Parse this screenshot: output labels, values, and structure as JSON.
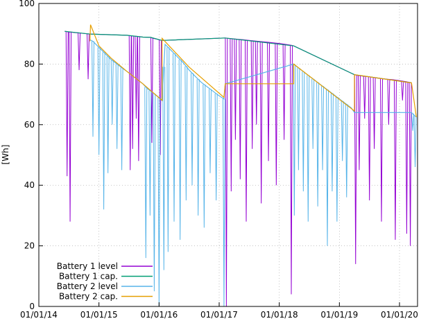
{
  "chart_data": {
    "type": "line",
    "title": "",
    "xlabel": "",
    "ylabel": "[Wh]",
    "ylim": [
      0,
      100
    ],
    "y_ticks": [
      0,
      20,
      40,
      60,
      80,
      100
    ],
    "x_ticks": [
      "01/01/14",
      "01/01/15",
      "01/01/16",
      "01/01/17",
      "01/01/18",
      "01/01/19",
      "01/01/20"
    ],
    "xlim": [
      2014.0,
      2020.3
    ],
    "grid": true,
    "legend_position": "bottom-left",
    "series": [
      {
        "name": "Battery 1 level",
        "color": "#9400d3",
        "x": [
          2014.43,
          2014.47,
          2014.5,
          2014.55,
          2014.6,
          2014.65,
          2014.7,
          2014.75,
          2014.8,
          2014.85,
          2015.47,
          2015.5,
          2015.55,
          2015.6,
          2015.65,
          2015.7,
          2015.73,
          2015.86,
          2015.9,
          2015.95,
          2016.0,
          2016.05,
          2017.1,
          2017.15,
          2017.2,
          2017.3,
          2017.4,
          2017.5,
          2017.6,
          2017.7,
          2017.8,
          2017.9,
          2018.0,
          2018.1,
          2018.2,
          2018.24,
          2019.25,
          2019.3,
          2019.4,
          2019.5,
          2019.6,
          2019.7,
          2019.8,
          2019.9,
          2020.0,
          2020.1,
          2020.15,
          2020.2
        ],
        "y": [
          90.8,
          90.7,
          90.6,
          90.5,
          90.4,
          90.3,
          90.2,
          90.1,
          90.0,
          89.9,
          89.5,
          89.4,
          89.3,
          89.2,
          89.1,
          89.0,
          88.9,
          88.8,
          88.5,
          88.3,
          88.0,
          87.8,
          88.6,
          88.5,
          88.4,
          88.2,
          88.0,
          87.8,
          87.6,
          87.4,
          87.2,
          87.0,
          86.8,
          86.5,
          86.2,
          86.0,
          76.5,
          76.3,
          76.0,
          75.8,
          75.5,
          75.2,
          75.0,
          74.8,
          74.5,
          74.2,
          74.0,
          73.8
        ],
        "dips_x": [
          2014.47,
          2014.52,
          2014.67,
          2014.82,
          2015.52,
          2015.56,
          2015.62,
          2015.66,
          2015.88,
          2016.02,
          2017.12,
          2017.2,
          2017.27,
          2017.35,
          2017.45,
          2017.55,
          2017.62,
          2017.7,
          2017.82,
          2017.95,
          2018.08,
          2018.2,
          2019.27,
          2019.33,
          2019.42,
          2019.5,
          2019.58,
          2019.7,
          2019.82,
          2019.93,
          2020.05,
          2020.12,
          2020.18
        ],
        "dips_y": [
          43,
          28,
          78,
          75,
          45,
          52,
          62,
          48,
          54,
          50,
          0,
          38,
          55,
          42,
          28,
          52,
          60,
          34,
          48,
          40,
          55,
          4,
          14,
          45,
          62,
          35,
          52,
          28,
          60,
          22,
          68,
          24,
          20
        ]
      },
      {
        "name": "Battery 1 cap.",
        "color": "#009e73",
        "x": [
          2014.43,
          2014.85,
          2015.47,
          2015.73,
          2015.86,
          2016.05,
          2017.1,
          2018.24,
          2019.25,
          2020.2
        ],
        "y": [
          90.8,
          89.9,
          89.5,
          88.9,
          88.8,
          87.8,
          88.6,
          86.0,
          76.5,
          73.8
        ]
      },
      {
        "name": "Battery 2 level",
        "color": "#56b4e9",
        "x": [
          2014.85,
          2014.9,
          2015.0,
          2015.1,
          2015.2,
          2015.3,
          2015.4,
          2015.47,
          2015.73,
          2015.8,
          2016.0,
          2016.05,
          2016.1,
          2016.2,
          2016.3,
          2016.4,
          2016.5,
          2016.6,
          2016.7,
          2016.8,
          2016.9,
          2017.0,
          2017.08,
          2017.1,
          2018.24,
          2018.3,
          2018.4,
          2018.5,
          2018.6,
          2018.7,
          2018.8,
          2018.9,
          2019.0,
          2019.1,
          2019.2,
          2019.25,
          2020.2,
          2020.25,
          2020.28
        ],
        "y": [
          88.0,
          87.5,
          85.5,
          83.5,
          81.5,
          80.0,
          78.5,
          77.5,
          73.5,
          72.0,
          69.0,
          68.0,
          86.5,
          84.5,
          82.5,
          80.5,
          78.0,
          76.0,
          74.0,
          72.5,
          71.0,
          69.5,
          68.5,
          73.5,
          80.0,
          79.0,
          77.5,
          76.0,
          74.5,
          73.0,
          71.5,
          70.0,
          68.5,
          67.0,
          65.5,
          64.0,
          64.0,
          63.0,
          62.5
        ],
        "dips_x": [
          2014.9,
          2015.0,
          2015.08,
          2015.15,
          2015.22,
          2015.3,
          2015.38,
          2015.78,
          2015.85,
          2015.92,
          2016.0,
          2016.08,
          2016.15,
          2016.25,
          2016.35,
          2016.45,
          2016.55,
          2016.65,
          2016.75,
          2016.85,
          2016.95,
          2017.08,
          2018.25,
          2018.32,
          2018.4,
          2018.48,
          2018.56,
          2018.64,
          2018.72,
          2018.8,
          2018.88,
          2018.96,
          2019.05,
          2019.12,
          2020.22,
          2020.26
        ],
        "dips_y": [
          56,
          50,
          32,
          44,
          60,
          52,
          45,
          16,
          30,
          5,
          0,
          12,
          18,
          28,
          22,
          35,
          40,
          30,
          26,
          44,
          35,
          0,
          30,
          45,
          38,
          28,
          52,
          33,
          45,
          20,
          38,
          28,
          48,
          36,
          58,
          46
        ]
      },
      {
        "name": "Battery 2 cap.",
        "color": "#e69f00",
        "x": [
          2014.85,
          2014.86,
          2015.0,
          2015.2,
          2015.47,
          2015.73,
          2016.05,
          2016.05,
          2016.5,
          2017.08,
          2017.1,
          2018.24,
          2018.24,
          2019.25,
          2019.25,
          2020.2,
          2020.28
        ],
        "y": [
          87.5,
          93.0,
          86.0,
          82.0,
          77.5,
          73.5,
          68.0,
          88.5,
          79.0,
          69.0,
          73.5,
          73.5,
          80.0,
          64.5,
          76.5,
          73.8,
          62.5
        ]
      }
    ]
  }
}
